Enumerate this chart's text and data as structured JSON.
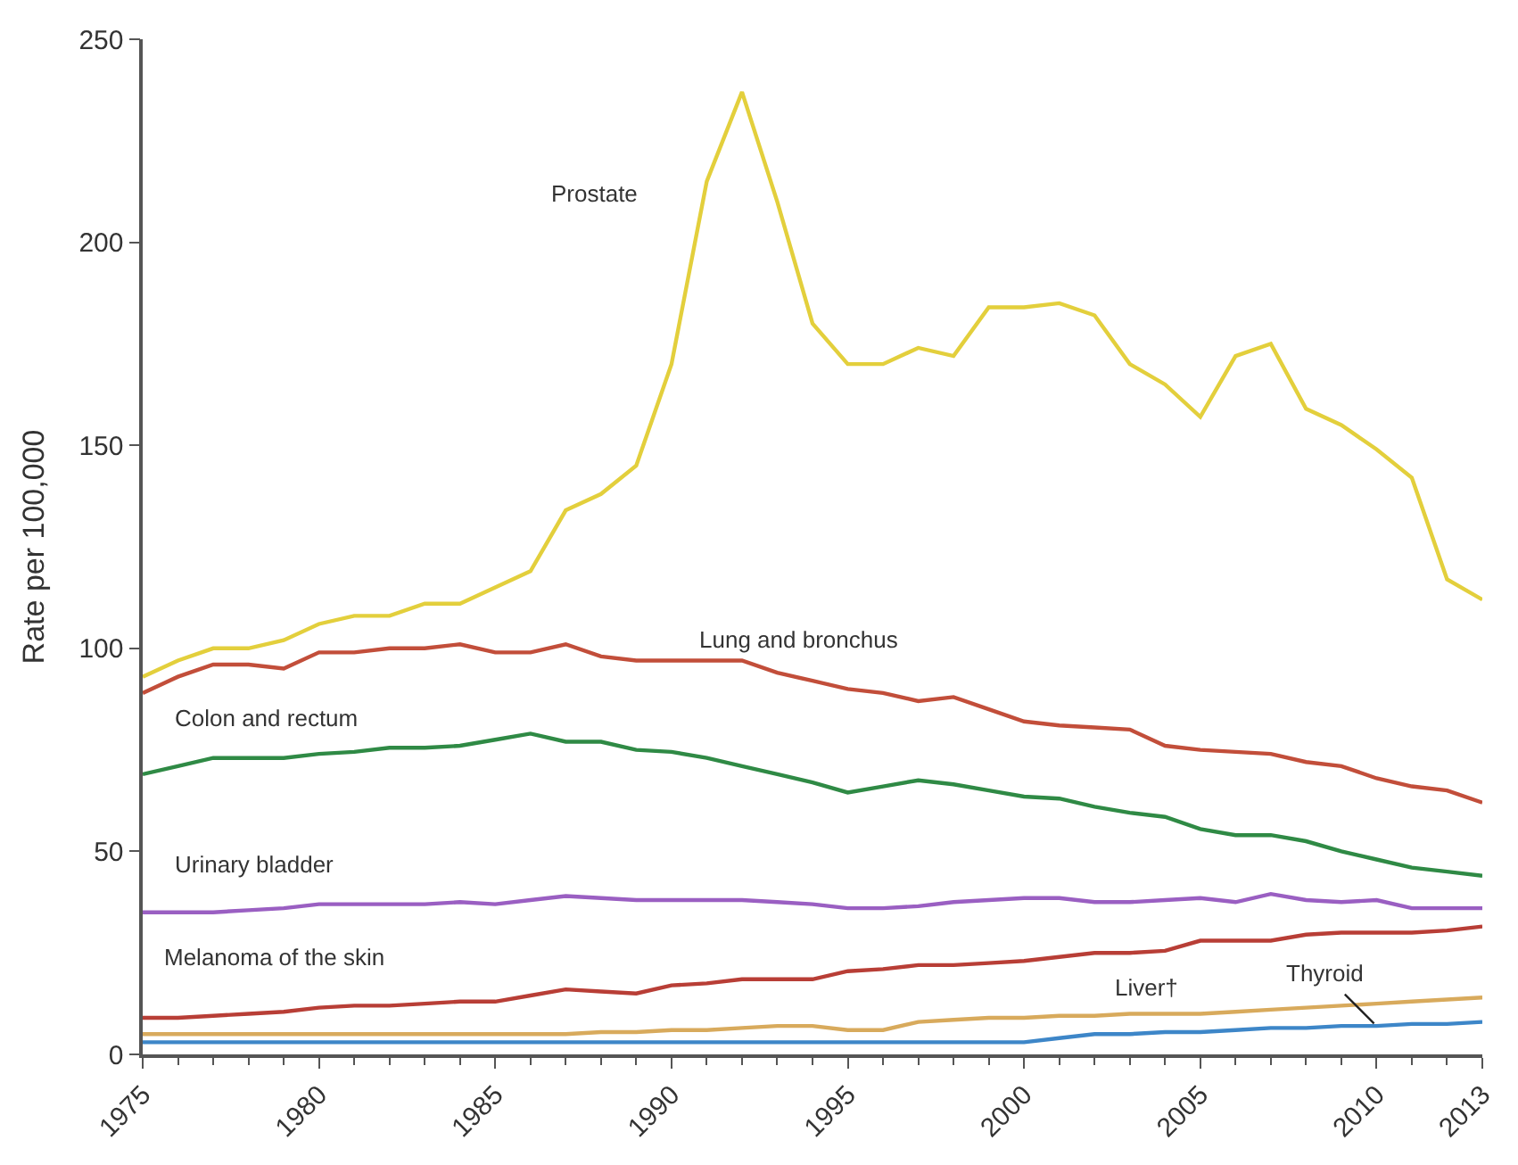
{
  "chart_data": {
    "type": "line",
    "ylabel": "Rate per 100,000",
    "x": [
      1975,
      1976,
      1977,
      1978,
      1979,
      1980,
      1981,
      1982,
      1983,
      1984,
      1985,
      1986,
      1987,
      1988,
      1989,
      1990,
      1991,
      1992,
      1993,
      1994,
      1995,
      1996,
      1997,
      1998,
      1999,
      2000,
      2001,
      2002,
      2003,
      2004,
      2005,
      2006,
      2007,
      2008,
      2009,
      2010,
      2011,
      2012,
      2013
    ],
    "series": [
      {
        "name": "Prostate",
        "color": "#e3cf3c",
        "values": [
          93,
          97,
          100,
          100,
          102,
          106,
          108,
          108,
          111,
          111,
          115,
          119,
          134,
          138,
          145,
          170,
          215,
          237,
          210,
          180,
          170,
          170,
          174,
          172,
          184,
          184,
          185,
          182,
          170,
          165,
          157,
          172,
          175,
          159,
          155,
          149,
          142,
          117,
          112
        ]
      },
      {
        "name": "Lung and bronchus",
        "color": "#c24e3a",
        "values": [
          89,
          93,
          96,
          96,
          95,
          99,
          99,
          100,
          100,
          101,
          99,
          99,
          101,
          98,
          97,
          97,
          97,
          97,
          94,
          92,
          90,
          89,
          87,
          88,
          85,
          82,
          81,
          80.5,
          80,
          76,
          75,
          74.5,
          74,
          72,
          71,
          68,
          66,
          65,
          62
        ]
      },
      {
        "name": "Colon and rectum",
        "color": "#2f8a45",
        "values": [
          69,
          71,
          73,
          73,
          73,
          74,
          74.5,
          75.5,
          75.5,
          76,
          77.5,
          79,
          77,
          77,
          75,
          74.5,
          73,
          71,
          69,
          67,
          64.5,
          66,
          67.5,
          66.5,
          65,
          63.5,
          63,
          61,
          59.5,
          58.5,
          55.5,
          54,
          54,
          52.5,
          50,
          48,
          46,
          45,
          44
        ]
      },
      {
        "name": "Urinary bladder",
        "color": "#9a5fc2",
        "values": [
          35,
          35,
          35,
          35.5,
          36,
          37,
          37,
          37,
          37,
          37.5,
          37,
          38,
          39,
          38.5,
          38,
          38,
          38,
          38,
          37.5,
          37,
          36,
          36,
          36.5,
          37.5,
          38,
          38.5,
          38.5,
          37.5,
          37.5,
          38,
          38.5,
          37.5,
          39.5,
          38,
          37.5,
          38,
          36,
          36,
          36
        ]
      },
      {
        "name": "Melanoma of the skin",
        "color": "#b83e36",
        "values": [
          9,
          9,
          9.5,
          10,
          10.5,
          11.5,
          12,
          12,
          12.5,
          13,
          13,
          14.5,
          16,
          15.5,
          15,
          17,
          17.5,
          18.5,
          18.5,
          18.5,
          20.5,
          21,
          22,
          22,
          22.5,
          23,
          24,
          25,
          25,
          25.5,
          28,
          28,
          28,
          29.5,
          30,
          30,
          30,
          30.5,
          31.5
        ]
      },
      {
        "name": "Liver†",
        "color": "#d8aa5c",
        "values": [
          5,
          5,
          5,
          5,
          5,
          5,
          5,
          5,
          5,
          5,
          5,
          5,
          5,
          5.5,
          5.5,
          6,
          6,
          6.5,
          7,
          7,
          6,
          6,
          8,
          8.5,
          9,
          9,
          9.5,
          9.5,
          10,
          10,
          10,
          10.5,
          11,
          11.5,
          12,
          12.5,
          13,
          13.5,
          14
        ]
      },
      {
        "name": "Thyroid",
        "color": "#3d86c8",
        "values": [
          3,
          3,
          3,
          3,
          3,
          3,
          3,
          3,
          3,
          3,
          3,
          3,
          3,
          3,
          3,
          3,
          3,
          3,
          3,
          3,
          3,
          3,
          3,
          3,
          3,
          3,
          4,
          5,
          5,
          5.5,
          5.5,
          6,
          6.5,
          6.5,
          7,
          7,
          7.5,
          7.5,
          8
        ]
      }
    ],
    "ylim": [
      0,
      250
    ],
    "yticks": [
      0,
      50,
      100,
      150,
      200,
      250
    ],
    "xlim": [
      1975,
      2013
    ],
    "xticks": [
      1975,
      1980,
      1985,
      1990,
      1995,
      2000,
      2005,
      2010,
      2013
    ],
    "legend": false,
    "marker": "none",
    "line_style": "solid"
  }
}
